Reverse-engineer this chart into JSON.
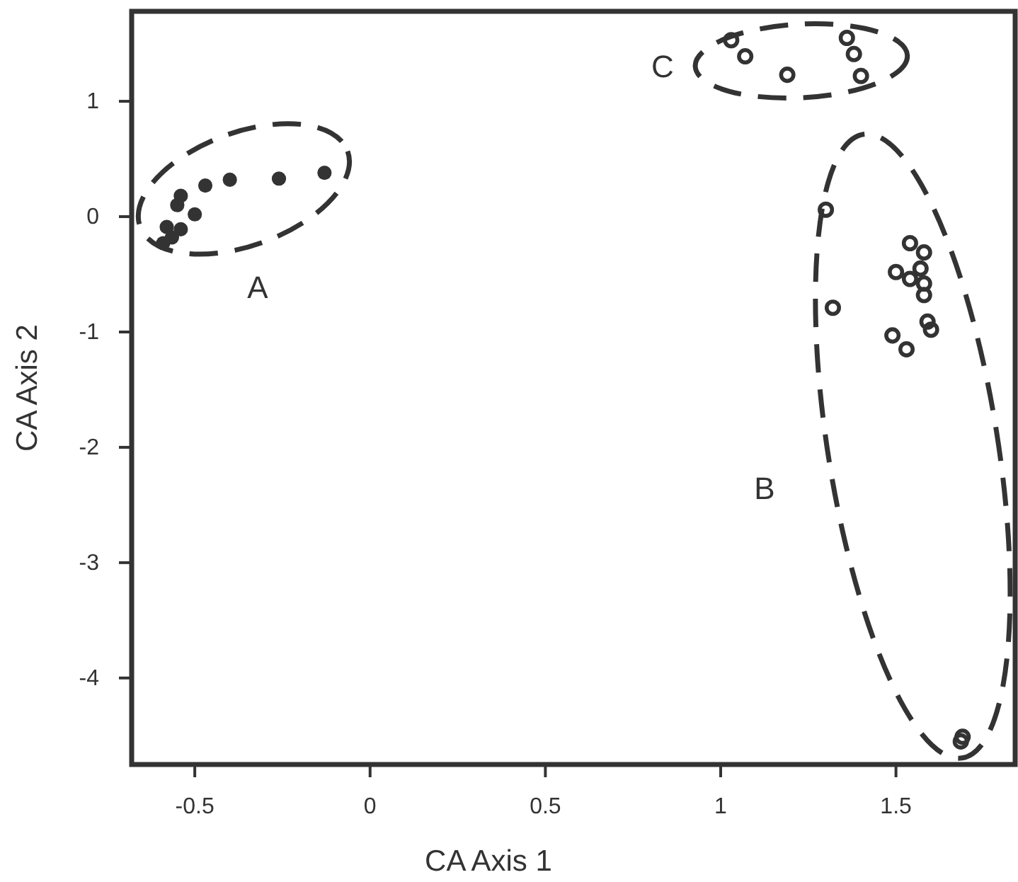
{
  "chart_data": {
    "type": "scatter",
    "xlabel": "CA Axis 1",
    "ylabel": "CA Axis 2",
    "xlim": [
      -0.68,
      1.84
    ],
    "ylim": [
      -4.75,
      1.78
    ],
    "xticks": [
      -0.5,
      0,
      0.5,
      1,
      1.5
    ],
    "yticks": [
      -4,
      -3,
      -2,
      -1,
      0,
      1
    ],
    "grid": false,
    "marker": "circle",
    "series": [
      {
        "color": "#333333",
        "x": [
          -0.13,
          -0.26,
          -0.4,
          -0.47,
          -0.54,
          -0.5,
          -0.55,
          -0.59,
          -0.565,
          -0.54,
          -0.58
        ],
        "values": [
          0.38,
          0.33,
          0.32,
          0.27,
          0.18,
          0.02,
          0.1,
          -0.23,
          -0.18,
          -0.11,
          -0.09
        ]
      },
      {
        "color": "#333333",
        "x": [
          1.3,
          1.32,
          1.54,
          1.58,
          1.5,
          1.54,
          1.57,
          1.58,
          1.58,
          1.49,
          1.53,
          1.59,
          1.6,
          1.69,
          1.685
        ],
        "values": [
          0.06,
          -0.79,
          -0.23,
          -0.31,
          -0.48,
          -0.54,
          -0.45,
          -0.58,
          -0.68,
          -1.03,
          -1.15,
          -0.91,
          -0.98,
          -4.51,
          -4.55
        ]
      },
      {
        "color": "#333333",
        "x": [
          1.03,
          1.07,
          1.19,
          1.36,
          1.38,
          1.4
        ],
        "values": [
          1.53,
          1.39,
          1.23,
          1.55,
          1.41,
          1.22
        ]
      }
    ],
    "annotations": [
      "A",
      "B",
      "C"
    ]
  }
}
